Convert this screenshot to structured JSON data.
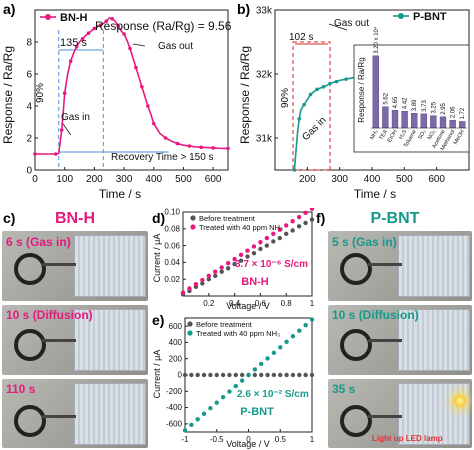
{
  "panel_labels": {
    "a": "a)",
    "b": "b)",
    "c": "c)",
    "d": "d)",
    "e": "e)",
    "f": "f)"
  },
  "colors": {
    "pink": "#e6197f",
    "teal": "#159a8c",
    "dark": "#2d2d2d",
    "blue_dash": "#4a90d9",
    "red_box": "#d62a2a",
    "bar": "#7b6aa8"
  },
  "chart_data": [
    {
      "id": "a",
      "type": "line",
      "legend": "BN-H",
      "title": "Response (Ra/Rg) = 9.56",
      "xlabel": "Time / s",
      "ylabel": "Response / Ra/Rg",
      "xlim": [
        0,
        650
      ],
      "ylim": [
        0,
        10
      ],
      "xticks": [
        0,
        100,
        200,
        300,
        400,
        500,
        600
      ],
      "yticks": [
        0,
        2,
        4,
        6,
        8
      ],
      "annotations": {
        "interval": "135 s",
        "pct": "90%",
        "gas_in": "Gas in",
        "gas_out": "Gas out",
        "recovery": "Recovery Time > 150 s"
      },
      "x": [
        0,
        40,
        70,
        80,
        90,
        95,
        100,
        110,
        120,
        130,
        140,
        150,
        160,
        170,
        180,
        190,
        200,
        210,
        220,
        230,
        240,
        250,
        260,
        270,
        280,
        290,
        300,
        310,
        320,
        330,
        340,
        350,
        360,
        370,
        380,
        390,
        400,
        420,
        440,
        460,
        480,
        500,
        520,
        540,
        560,
        580,
        600,
        620,
        650
      ],
      "y": [
        1.0,
        1.0,
        1.0,
        1.05,
        2.5,
        3.6,
        4.8,
        6.0,
        6.8,
        7.3,
        7.7,
        8.0,
        8.2,
        8.4,
        8.55,
        8.7,
        8.85,
        8.95,
        9.05,
        9.15,
        9.3,
        9.5,
        9.45,
        9.3,
        9.0,
        8.7,
        8.5,
        8.1,
        7.6,
        7.0,
        6.4,
        5.8,
        5.2,
        4.6,
        4.0,
        3.5,
        2.9,
        2.3,
        2.0,
        1.8,
        1.65,
        1.55,
        1.5,
        1.45,
        1.42,
        1.4,
        1.38,
        1.36,
        1.35
      ]
    },
    {
      "id": "b",
      "type": "line",
      "legend": "P-BNT",
      "xlabel": "Time / s",
      "ylabel": "Response / Ra/Rg",
      "xlim": [
        100,
        700
      ],
      "ylim": [
        30500,
        33000
      ],
      "xticks": [
        200,
        300,
        400,
        500,
        600
      ],
      "yticks": [
        31000,
        32000,
        33000
      ],
      "ytick_labels": [
        "31k",
        "32k",
        "33k"
      ],
      "annotations": {
        "interval": "102 s",
        "pct": "90%",
        "gas_in": "Gas in",
        "gas_out": "Gas out"
      },
      "x": [
        160,
        170,
        175,
        180,
        190,
        200,
        210,
        220,
        230,
        240,
        250,
        260,
        270,
        280,
        290,
        300,
        320,
        340,
        360,
        380,
        400,
        420,
        440,
        460,
        480,
        500,
        520,
        540,
        560,
        580,
        600,
        620,
        640,
        660,
        680
      ],
      "y": [
        30500,
        31100,
        31300,
        31440,
        31520,
        31600,
        31680,
        31720,
        31760,
        31780,
        31800,
        31820,
        31850,
        31870,
        31880,
        31900,
        31920,
        31940,
        31960,
        31970,
        31980,
        31990,
        31995,
        32000,
        32000,
        32005,
        32005,
        32010,
        32010,
        32015,
        32015,
        32015,
        32020,
        32020,
        32020
      ]
    },
    {
      "id": "b-inset",
      "type": "bar",
      "ylabel": "Response / Ra/Rg",
      "categories": [
        "NH3",
        "TEA",
        "EtOH",
        "H2S",
        "Toluene",
        "SO2",
        "NO2",
        "Acetone",
        "Methanol",
        "MeOH"
      ],
      "values": [
        32000,
        5.62,
        4.65,
        4.42,
        3.89,
        3.73,
        3.25,
        2.95,
        2.06,
        1.72
      ],
      "value_labels": [
        "3.20 x 10⁴",
        "5.62",
        "4.65",
        "4.42",
        "3.89",
        "3.73",
        "3.25",
        "2.95",
        "2.06",
        "1.72"
      ],
      "tick_labels": [
        "NH₃",
        "TEA",
        "EtOH",
        "H₂S",
        "Toluene",
        "SO₂",
        "NO₂",
        "Acetone",
        "Methanol",
        "MeOH"
      ]
    },
    {
      "id": "d",
      "type": "scatter",
      "title": "BN-H",
      "xlabel": "Voltage / V",
      "ylabel": "Current / μA",
      "xlim": [
        0.0,
        1.0
      ],
      "ylim": [
        0.0,
        0.1
      ],
      "xticks": [
        0.2,
        0.4,
        0.6,
        0.8,
        1.0
      ],
      "yticks": [
        0.02,
        0.04,
        0.06,
        0.08,
        0.1
      ],
      "annotation": "3.7 × 10⁻⁶ S/cm",
      "series": [
        {
          "name": "Before treatment",
          "x": [
            0.0,
            0.05,
            0.1,
            0.15,
            0.2,
            0.25,
            0.3,
            0.35,
            0.4,
            0.45,
            0.5,
            0.55,
            0.6,
            0.65,
            0.7,
            0.75,
            0.8,
            0.85,
            0.9,
            0.95,
            1.0
          ],
          "y": [
            0.002,
            0.006,
            0.011,
            0.015,
            0.02,
            0.024,
            0.029,
            0.033,
            0.038,
            0.042,
            0.047,
            0.051,
            0.056,
            0.06,
            0.065,
            0.069,
            0.074,
            0.078,
            0.083,
            0.087,
            0.091
          ]
        },
        {
          "name": "Treated with 40 ppm NH₃",
          "x": [
            0.0,
            0.05,
            0.1,
            0.15,
            0.2,
            0.25,
            0.3,
            0.35,
            0.4,
            0.45,
            0.5,
            0.55,
            0.6,
            0.65,
            0.7,
            0.75,
            0.8,
            0.85,
            0.9,
            0.95,
            1.0
          ],
          "y": [
            0.004,
            0.009,
            0.014,
            0.019,
            0.024,
            0.029,
            0.034,
            0.039,
            0.044,
            0.049,
            0.054,
            0.059,
            0.064,
            0.069,
            0.074,
            0.079,
            0.084,
            0.089,
            0.094,
            0.099,
            0.104
          ]
        }
      ]
    },
    {
      "id": "e",
      "type": "scatter",
      "title": "P-BNT",
      "xlabel": "Voltage / V",
      "ylabel": "Current / μA",
      "xlim": [
        -1.0,
        1.0
      ],
      "ylim": [
        -700,
        700
      ],
      "xticks": [
        -1.0,
        -0.5,
        0.0,
        0.5,
        1.0
      ],
      "yticks": [
        -600,
        -400,
        -200,
        0,
        200,
        400,
        600
      ],
      "annotation": "2.6 × 10⁻² S/cm",
      "series": [
        {
          "name": "Before treatment",
          "x": [
            -1.0,
            -0.9,
            -0.8,
            -0.7,
            -0.6,
            -0.5,
            -0.4,
            -0.3,
            -0.2,
            -0.1,
            0.0,
            0.1,
            0.2,
            0.3,
            0.4,
            0.5,
            0.6,
            0.7,
            0.8,
            0.9,
            1.0
          ],
          "y": [
            0,
            0,
            0,
            0,
            0,
            0,
            0,
            0,
            0,
            0,
            0,
            0,
            0,
            0,
            0,
            0,
            0,
            0,
            0,
            0,
            0
          ]
        },
        {
          "name": "Treated with 40 ppm NH₃",
          "x": [
            -1.0,
            -0.9,
            -0.8,
            -0.7,
            -0.6,
            -0.5,
            -0.4,
            -0.3,
            -0.2,
            -0.1,
            0.0,
            0.1,
            0.2,
            0.3,
            0.4,
            0.5,
            0.6,
            0.7,
            0.8,
            0.9,
            1.0
          ],
          "y": [
            -680,
            -612,
            -544,
            -476,
            -408,
            -340,
            -272,
            -204,
            -136,
            -68,
            0,
            68,
            136,
            204,
            272,
            340,
            408,
            476,
            544,
            612,
            680
          ]
        }
      ]
    }
  ],
  "panel_c": {
    "header": "BN-H",
    "frames": [
      "6 s (Gas in)",
      "10 s (Diffusion)",
      "110 s"
    ]
  },
  "panel_f": {
    "header": "P-BNT",
    "frames": [
      "5 s (Gas in)",
      "10 s (Diffusion)",
      "35 s"
    ],
    "note": "Light up LED lamp"
  }
}
